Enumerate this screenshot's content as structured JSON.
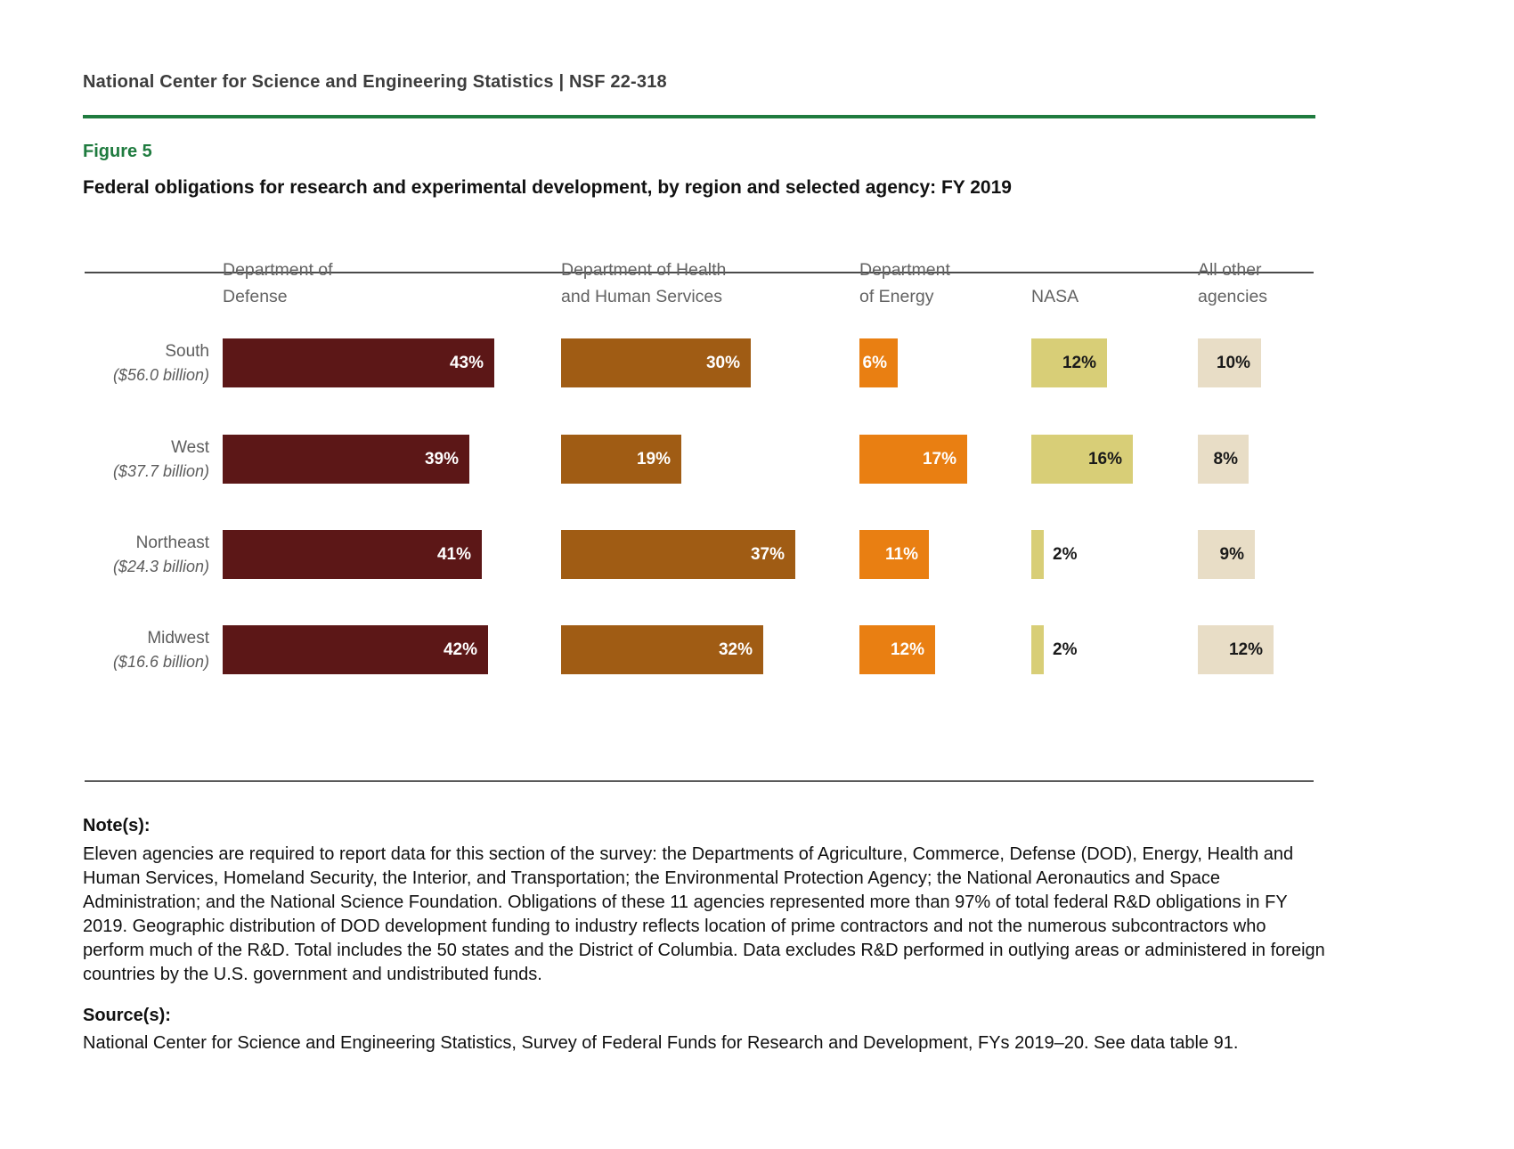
{
  "page": {
    "header": "National Center for Science and Engineering Statistics  |  NSF 22-318",
    "figure_label": "Figure 5",
    "title": "Federal obligations for research and experimental development, by region and selected agency: FY 2019",
    "notes_heading": "Note(s):",
    "notes": "Eleven agencies are required to report data for this section of the survey: the Departments of Agriculture, Commerce, Defense (DOD), Energy, Health and Human Services, Homeland Security, the Interior, and Transportation; the Environmental Protection Agency; the National Aeronautics and Space Administration; and the National Science Foundation. Obligations of these 11 agencies represented more than 97% of total federal R&D obligations in FY 2019. Geographic distribution of DOD development funding to industry reflects location of prime contractors and not the numerous subcontractors who perform much of the R&D. Total includes the 50 states and the District of Columbia. Data excludes R&D performed in outlying areas or administered in foreign countries by the U.S. government and undistributed funds.",
    "source_heading": "Source(s):",
    "source": "National Center for Science and Engineering Statistics, Survey of Federal Funds for Research and Development, FYs 2019–20. See data table 91."
  },
  "colors": {
    "accent_green": "#1F7B3F",
    "rule_dark": "#4A4A4A",
    "dod": "#5C1717",
    "hhs": "#A05C14",
    "doe": "#E97F12",
    "nasa": "#D8CE77",
    "other": "#E8DDC6",
    "header_gray": "#636363",
    "note_text": "#1A1A1A"
  },
  "chart_data": {
    "type": "bar",
    "orientation": "horizontal",
    "title": "Federal obligations for research and experimental development, by region and selected agency: FY 2019",
    "value_unit": "percent of region total",
    "label_format": "{value}%",
    "label_outside_below": 5,
    "columns": [
      {
        "key": "dod",
        "name": "Department of Defense",
        "header_lines": [
          "Department of",
          "Defense"
        ],
        "color_key": "dod",
        "label_color": "#ffffff"
      },
      {
        "key": "hhs",
        "name": "Department of Health and Human Services",
        "header_lines": [
          "Department of Health",
          "and Human Services"
        ],
        "color_key": "hhs",
        "label_color": "#ffffff"
      },
      {
        "key": "doe",
        "name": "Department of Energy",
        "header_lines": [
          "Department",
          "of Energy"
        ],
        "color_key": "doe",
        "label_color": "#ffffff"
      },
      {
        "key": "nasa",
        "name": "NASA",
        "header_lines": [
          "NASA"
        ],
        "color_key": "nasa",
        "label_color": "#1a1a1a"
      },
      {
        "key": "other",
        "name": "All other agencies",
        "header_lines": [
          "All other",
          "agencies"
        ],
        "color_key": "other",
        "label_color": "#1a1a1a"
      }
    ],
    "rows": [
      {
        "region": "South",
        "amount_label": "($56.0 billion)",
        "values": [
          43,
          30,
          6,
          12,
          10
        ]
      },
      {
        "region": "West",
        "amount_label": "($37.7 billion)",
        "values": [
          39,
          19,
          17,
          16,
          8
        ]
      },
      {
        "region": "Northeast",
        "amount_label": "($24.3 billion)",
        "values": [
          41,
          37,
          11,
          2,
          9
        ]
      },
      {
        "region": "Midwest",
        "amount_label": "($16.6 billion)",
        "values": [
          42,
          32,
          12,
          2,
          12
        ]
      }
    ]
  }
}
